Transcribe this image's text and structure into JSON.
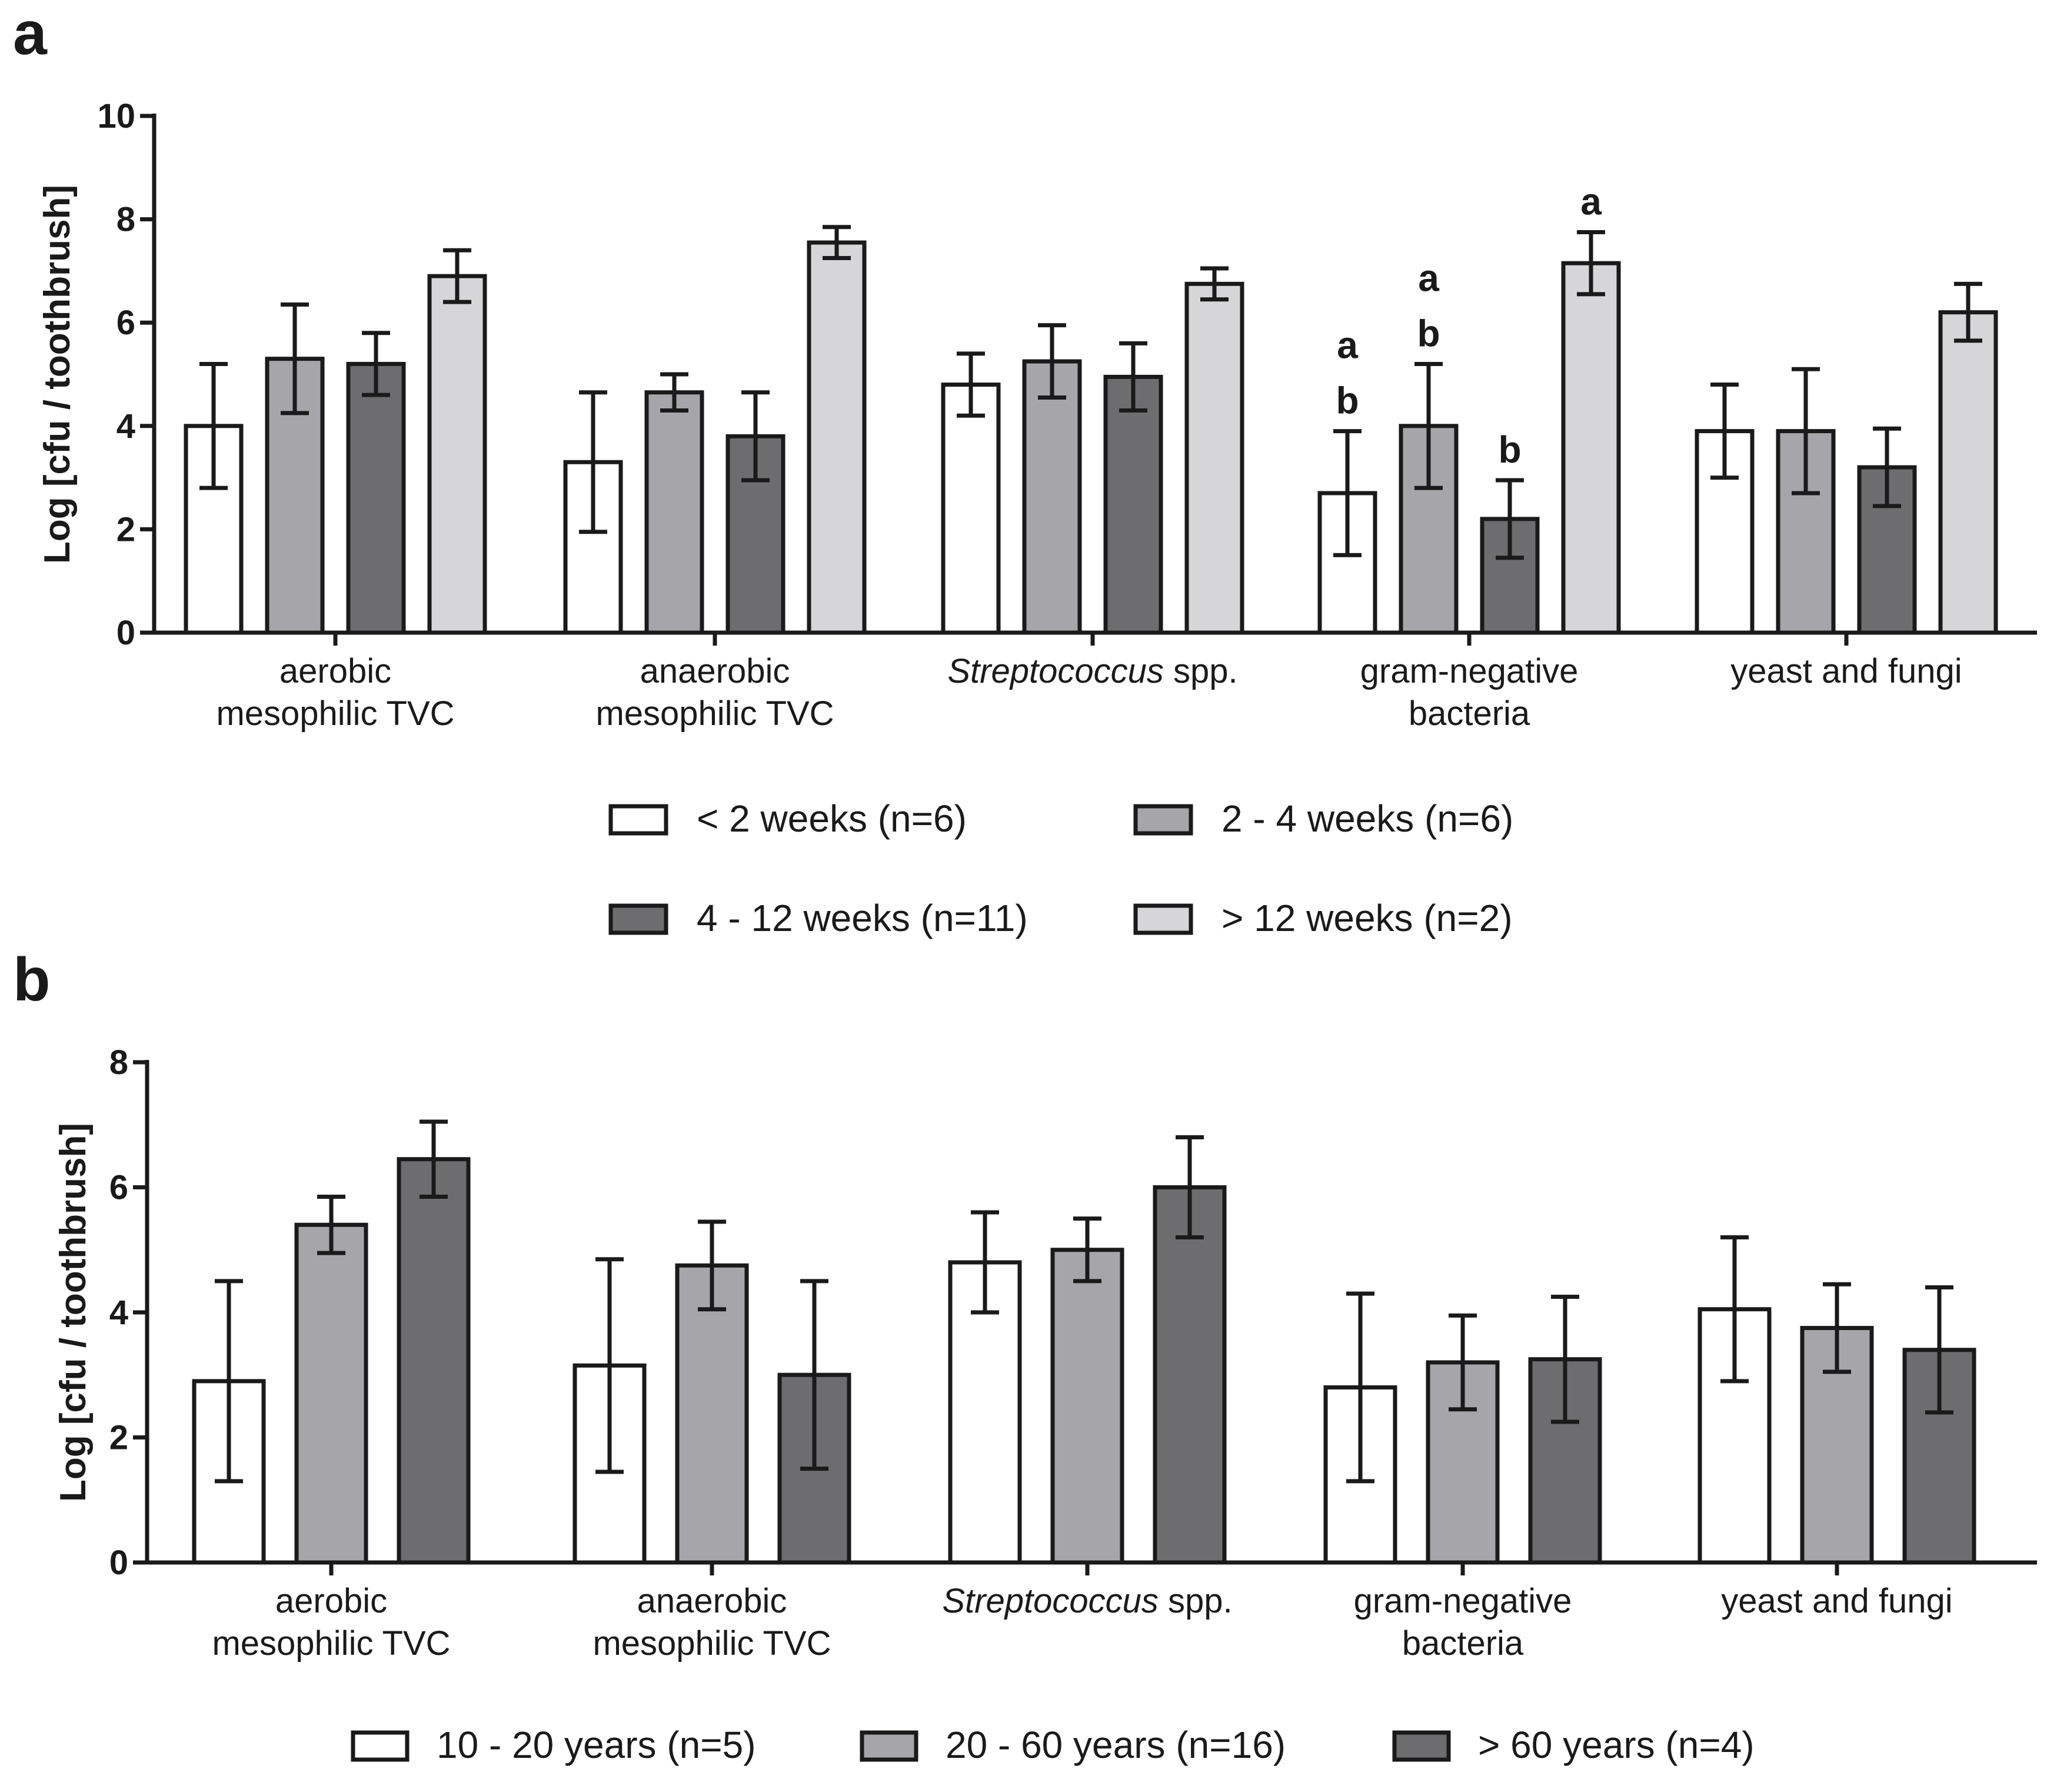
{
  "chart_data": [
    {
      "panel": "a",
      "type": "bar",
      "ylabel": "Log [cfu / toothbrush]",
      "ylim": [
        0,
        10
      ],
      "yticks": [
        "0",
        "2",
        "4",
        "6",
        "8",
        "10"
      ],
      "categories": [
        {
          "lines": [
            "aerobic",
            "mesophilic TVC"
          ]
        },
        {
          "lines": [
            "anaerobic",
            "mesophilic TVC"
          ]
        },
        {
          "italic": "Streptococcus",
          "rest": " spp."
        },
        {
          "lines": [
            "gram-negative",
            "bacteria"
          ]
        },
        {
          "lines": [
            "yeast and fungi"
          ]
        }
      ],
      "series": [
        {
          "name": "< 2 weeks (n=6)",
          "color": "#ffffff",
          "values": [
            4.0,
            3.3,
            4.8,
            2.7,
            3.9
          ],
          "errors": [
            1.2,
            1.35,
            0.6,
            1.2,
            0.9
          ]
        },
        {
          "name": "2 - 4 weeks (n=6)",
          "color": "#a6a6aa",
          "values": [
            5.3,
            4.65,
            5.25,
            4.0,
            3.9
          ],
          "errors": [
            1.05,
            0.35,
            0.7,
            1.2,
            1.2
          ]
        },
        {
          "name": "4 - 12 weeks (n=11)",
          "color": "#6d6d6f",
          "values": [
            5.2,
            3.8,
            4.95,
            2.2,
            3.2
          ],
          "errors": [
            0.6,
            0.85,
            0.65,
            0.75,
            0.75
          ]
        },
        {
          "name": "> 12 weeks (n=2)",
          "color": "#d6d6d8",
          "values": [
            6.9,
            7.55,
            6.75,
            7.15,
            6.2
          ],
          "errors": [
            0.5,
            0.3,
            0.3,
            0.6,
            0.55
          ]
        }
      ],
      "annotations": [
        {
          "category": 3,
          "series": 0,
          "letters": [
            "a",
            "b"
          ]
        },
        {
          "category": 3,
          "series": 1,
          "letters": [
            "a",
            "b"
          ]
        },
        {
          "category": 3,
          "series": 2,
          "letters": [
            "b"
          ]
        },
        {
          "category": 3,
          "series": 3,
          "letters": [
            "a"
          ]
        }
      ]
    },
    {
      "panel": "b",
      "type": "bar",
      "ylabel": "Log [cfu / toothbrush]",
      "ylim": [
        0,
        8
      ],
      "yticks": [
        "0",
        "2",
        "4",
        "6",
        "8"
      ],
      "categories": [
        {
          "lines": [
            "aerobic",
            "mesophilic TVC"
          ]
        },
        {
          "lines": [
            "anaerobic",
            "mesophilic TVC"
          ]
        },
        {
          "italic": "Streptococcus",
          "rest": " spp."
        },
        {
          "lines": [
            "gram-negative",
            "bacteria"
          ]
        },
        {
          "lines": [
            "yeast and fungi"
          ]
        }
      ],
      "series": [
        {
          "name": "10 - 20 years (n=5)",
          "color": "#ffffff",
          "values": [
            2.9,
            3.15,
            4.8,
            2.8,
            4.05
          ],
          "errors": [
            1.6,
            1.7,
            0.8,
            1.5,
            1.15
          ]
        },
        {
          "name": "20 - 60 years (n=16)",
          "color": "#a6a6aa",
          "values": [
            5.4,
            4.75,
            5.0,
            3.2,
            3.75
          ],
          "errors": [
            0.45,
            0.7,
            0.5,
            0.75,
            0.7
          ]
        },
        {
          "name": "> 60 years (n=4)",
          "color": "#6d6d6f",
          "values": [
            6.45,
            3.0,
            6.0,
            3.25,
            3.4
          ],
          "errors": [
            0.6,
            1.5,
            0.8,
            1.0,
            1.0
          ]
        }
      ]
    }
  ]
}
